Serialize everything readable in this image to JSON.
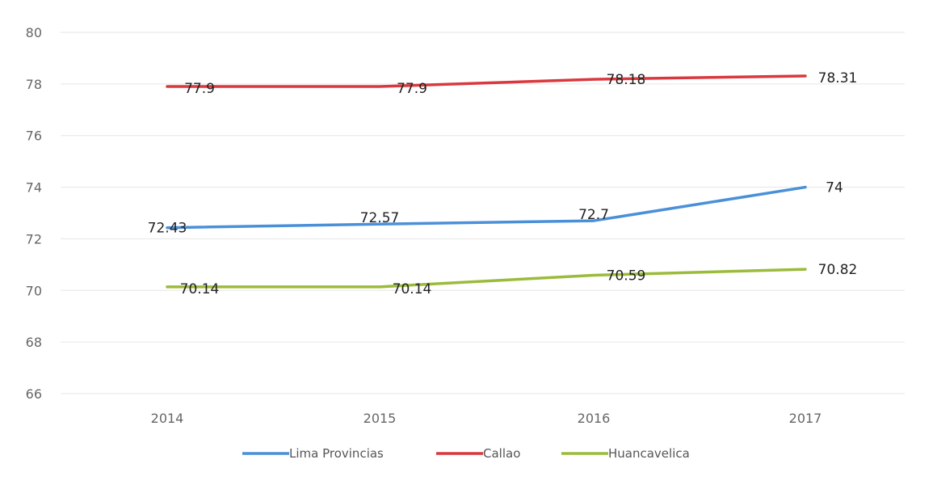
{
  "chart_data": {
    "type": "line",
    "title": "",
    "xlabel": "",
    "ylabel": "",
    "categories": [
      "2014",
      "2015",
      "2016",
      "2017"
    ],
    "ylim": [
      66,
      80
    ],
    "yticks": [
      66,
      68,
      70,
      72,
      74,
      76,
      78,
      80
    ],
    "grid": true,
    "legend_position": "bottom",
    "series": [
      {
        "name": "Lima Provincias",
        "color": "#4a90d9",
        "values": [
          72.43,
          72.57,
          72.7,
          74
        ],
        "labels": [
          "72.43",
          "72.57",
          "72.7",
          "74"
        ]
      },
      {
        "name": "Callao",
        "color": "#d9393e",
        "values": [
          77.9,
          77.9,
          78.18,
          78.31
        ],
        "labels": [
          "77.9",
          "77.9",
          "78.18",
          "78.31"
        ]
      },
      {
        "name": "Huancavelica",
        "color": "#9bbb3b",
        "values": [
          70.14,
          70.14,
          70.59,
          70.82
        ],
        "labels": [
          "70.14",
          "70.14",
          "70.59",
          "70.82"
        ]
      }
    ]
  }
}
